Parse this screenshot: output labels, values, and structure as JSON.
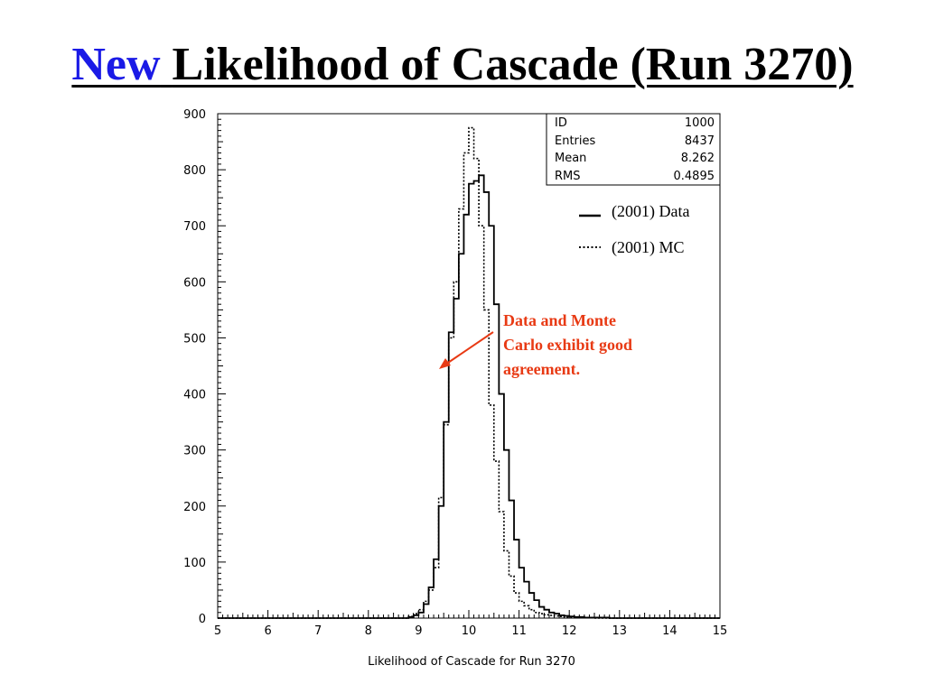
{
  "slide": {
    "title_prefix": "New",
    "title_rest": "Likelihood of Cascade (Run 3270)"
  },
  "stats_box": {
    "rows": [
      {
        "label": "ID",
        "value": "1000"
      },
      {
        "label": "Entries",
        "value": "8437"
      },
      {
        "label": "Mean",
        "value": "8.262"
      },
      {
        "label": "RMS",
        "value": "0.4895"
      }
    ]
  },
  "annotation": {
    "lines": [
      "Data and Monte",
      "Carlo exhibit good",
      "agreement."
    ],
    "color": "#e83a14"
  },
  "colors": {
    "title_accent": "#1a1ae6",
    "annotation": "#e83a14",
    "axes": "#000000"
  },
  "chart_data": {
    "type": "histogram",
    "xlabel": "Likelihood of Cascade for Run 3270",
    "ylabel": "",
    "xlim": [
      5,
      15
    ],
    "ylim": [
      0,
      900
    ],
    "x_ticks": [
      "5",
      "6",
      "7",
      "8",
      "9",
      "10",
      "11",
      "12",
      "13",
      "14",
      "15"
    ],
    "y_ticks": [
      "0",
      "100",
      "200",
      "300",
      "400",
      "500",
      "600",
      "700",
      "800",
      "900"
    ],
    "grid": false,
    "legend_position": "top-right",
    "bin_edges_start": 5.0,
    "bin_width": 0.1,
    "series": [
      {
        "name": "(2001) Data",
        "style": "solid",
        "values": [
          0,
          0,
          0,
          0,
          0,
          0,
          0,
          0,
          0,
          0,
          0,
          0,
          0,
          0,
          0,
          0,
          0,
          0,
          0,
          0,
          0,
          0,
          0,
          0,
          0,
          0,
          0,
          0,
          0,
          0,
          0,
          0,
          0,
          0,
          0,
          0,
          0,
          0,
          2,
          5,
          10,
          25,
          55,
          105,
          200,
          350,
          510,
          570,
          650,
          720,
          775,
          780,
          790,
          760,
          700,
          560,
          400,
          300,
          210,
          140,
          90,
          65,
          45,
          32,
          20,
          15,
          10,
          8,
          5,
          4,
          3,
          2,
          2,
          1,
          1,
          1,
          1,
          1,
          0,
          0,
          0,
          0,
          0,
          0,
          0,
          0,
          0,
          0,
          0,
          0,
          0,
          0,
          0,
          0,
          0,
          0,
          0,
          0,
          0,
          0
        ]
      },
      {
        "name": "(2001) MC",
        "style": "dotted",
        "values": [
          0,
          0,
          0,
          0,
          0,
          0,
          0,
          0,
          0,
          0,
          0,
          0,
          0,
          0,
          0,
          0,
          0,
          0,
          0,
          0,
          0,
          0,
          0,
          0,
          0,
          0,
          0,
          0,
          0,
          0,
          0,
          0,
          0,
          0,
          0,
          0,
          0,
          0,
          3,
          8,
          15,
          30,
          50,
          90,
          215,
          345,
          500,
          600,
          730,
          830,
          875,
          820,
          700,
          550,
          380,
          280,
          190,
          120,
          75,
          45,
          30,
          22,
          15,
          10,
          8,
          6,
          5,
          4,
          3,
          2,
          2,
          1,
          1,
          1,
          1,
          0,
          0,
          0,
          0,
          0,
          0,
          0,
          0,
          0,
          0,
          0,
          0,
          0,
          0,
          0,
          0,
          0,
          0,
          0,
          0,
          0,
          0,
          0,
          0,
          0
        ]
      }
    ]
  }
}
